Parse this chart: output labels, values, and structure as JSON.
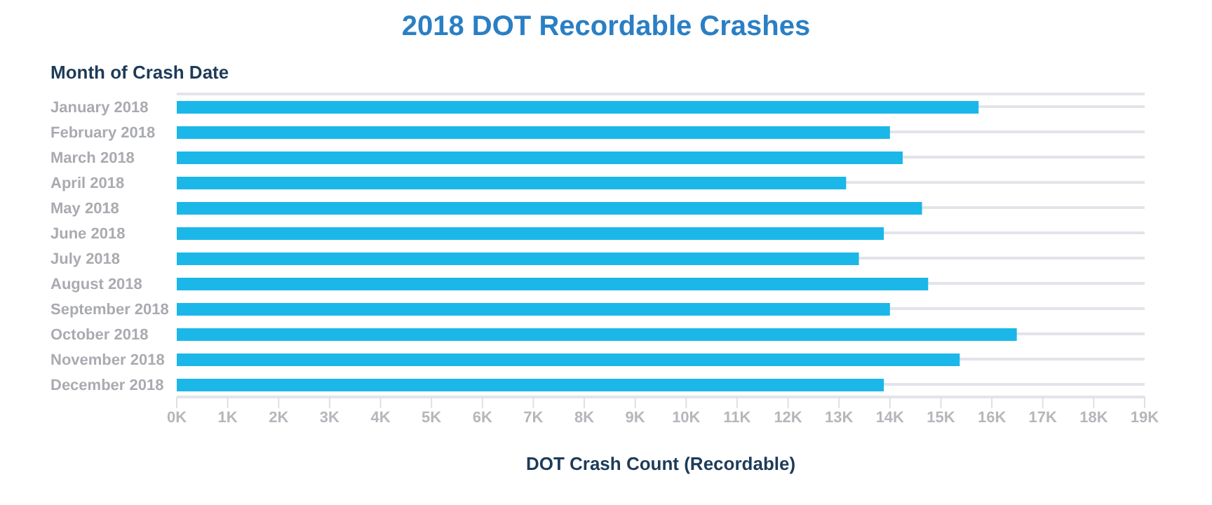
{
  "chart_data": {
    "type": "bar",
    "orientation": "horizontal",
    "title": "2018 DOT Recordable Crashes",
    "ylabel": "Month of Crash Date",
    "xlabel": "DOT Crash Count (Recordable)",
    "categories": [
      "January 2018",
      "February 2018",
      "March 2018",
      "April 2018",
      "May 2018",
      "June 2018",
      "July 2018",
      "August 2018",
      "September 2018",
      "October 2018",
      "November 2018",
      "December 2018"
    ],
    "values": [
      15740,
      14000,
      14250,
      13140,
      14630,
      13880,
      13390,
      14750,
      14000,
      16490,
      15370,
      13880
    ],
    "color": "#1bb7e8",
    "xlim": [
      0,
      19000
    ],
    "xticks": [
      {
        "value": 0,
        "label": "0K"
      },
      {
        "value": 1000,
        "label": "1K"
      },
      {
        "value": 2000,
        "label": "2K"
      },
      {
        "value": 3000,
        "label": "3K"
      },
      {
        "value": 4000,
        "label": "4K"
      },
      {
        "value": 5000,
        "label": "5K"
      },
      {
        "value": 6000,
        "label": "6K"
      },
      {
        "value": 7000,
        "label": "7K"
      },
      {
        "value": 8000,
        "label": "8K"
      },
      {
        "value": 9000,
        "label": "9K"
      },
      {
        "value": 10000,
        "label": "10K"
      },
      {
        "value": 11000,
        "label": "11K"
      },
      {
        "value": 12000,
        "label": "12K"
      },
      {
        "value": 13000,
        "label": "13K"
      },
      {
        "value": 14000,
        "label": "14K"
      },
      {
        "value": 15000,
        "label": "15K"
      },
      {
        "value": 16000,
        "label": "16K"
      },
      {
        "value": 17000,
        "label": "17K"
      },
      {
        "value": 18000,
        "label": "18K"
      },
      {
        "value": 19000,
        "label": "19K"
      }
    ],
    "grid": "y",
    "legend": false
  }
}
